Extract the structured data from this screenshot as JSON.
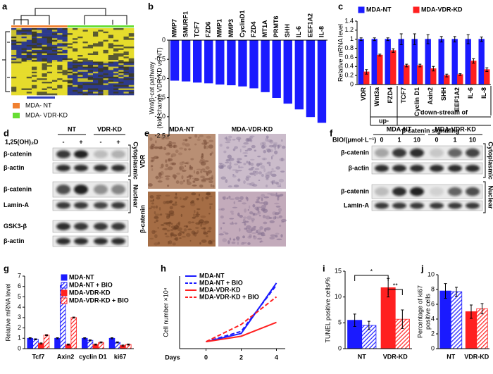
{
  "panel_labels": [
    "a",
    "b",
    "c",
    "d",
    "e",
    "f",
    "g",
    "h",
    "i",
    "j"
  ],
  "panel_a": {
    "legend": [
      {
        "name": "MDA- NT",
        "color": "#f08030"
      },
      {
        "name": "MDA- VDR-KD",
        "color": "#66dd33"
      }
    ]
  },
  "panel_d": {
    "groups": [
      "NT",
      "VDR-KD"
    ],
    "treatment": "1,25(OH)₂D",
    "doses": [
      "-",
      "+",
      "-",
      "+"
    ],
    "rows": [
      "β-catenin",
      "β-actin",
      "β-catenin",
      "Lamin-A",
      "GSK3-β",
      "β-actin"
    ],
    "fractions": [
      "Cytoplasmic",
      "Nuclear"
    ]
  },
  "panel_e": {
    "columns": [
      "MDA-NT",
      "MDA-VDR-KD"
    ],
    "rows": [
      "VDR",
      "β-catenin"
    ]
  },
  "panel_f": {
    "groups": [
      "MDA-NT",
      "MDA-VDR-KD"
    ],
    "treatment": "BIO/(μmol·L⁻¹)",
    "doses": [
      "0",
      "1",
      "10",
      "0",
      "1",
      "10"
    ],
    "rows": [
      "β-catenin",
      "β-actin",
      "β-catenin",
      "Lamin-A"
    ],
    "fractions": [
      "Cytoplasmic",
      "Nuclear"
    ]
  },
  "chart_data": [
    {
      "type": "bar",
      "y_label": [
        "Wnt/β-cat pathway",
        "(fold change VDR-KD vs NT)"
      ],
      "categories": [
        "MMP7",
        "SMURF1",
        "TCF7",
        "FZD6",
        "MMP1",
        "MMP3",
        "CyclinD1",
        "FZD4",
        "MT1A",
        "PRMT6",
        "SHH",
        "IL-6",
        "EEF1A2",
        "IL-8"
      ],
      "values": [
        -1.05,
        -1.07,
        -1.1,
        -1.12,
        -1.15,
        -1.17,
        -1.2,
        -1.25,
        -1.35,
        -1.5,
        -1.65,
        -1.8,
        -2.0,
        -2.15
      ],
      "color": "#1a1aff",
      "ylim": [
        -2.5,
        0
      ],
      "yticks": [
        -2.5,
        {
          "value": -2,
          "label": "-2.0"
        },
        -1.5,
        {
          "value": -1,
          "label": "-1.0"
        },
        -0.5,
        0
      ]
    },
    {
      "type": "bar",
      "y_label": "Relative mRNA level",
      "categories": [
        "VDR",
        "Wnt3a",
        "FZD4",
        "TCF7",
        "Cyclin D1",
        "Axin2",
        "SHH",
        "EEF1A2",
        "IL-6",
        "IL-8"
      ],
      "series": [
        {
          "name": "MDA-NT",
          "color": "#1a1aff",
          "values": [
            1.0,
            1.0,
            1.0,
            1.0,
            1.0,
            1.0,
            1.0,
            1.0,
            1.0,
            1.0
          ],
          "errors": [
            0.03,
            0.03,
            0.03,
            0.12,
            0.12,
            0.1,
            0.06,
            0.06,
            0.1,
            0.05
          ]
        },
        {
          "name": "MDA-VDR-KD",
          "color": "#ff2020",
          "values": [
            0.28,
            0.65,
            0.75,
            0.42,
            0.42,
            0.35,
            0.2,
            0.22,
            0.52,
            0.33
          ],
          "errors": [
            0.05,
            0.02,
            0.04,
            0.03,
            0.03,
            0.05,
            0.03,
            0.02,
            0.05,
            0.04
          ]
        }
      ],
      "ylim": [
        0,
        1.4
      ],
      "yticks": [
        0,
        0.2,
        0.4,
        0.6,
        0.8,
        1,
        1.2,
        1.4
      ],
      "legend": "top",
      "annotations": [
        "up-",
        "down-stream of",
        "β-catenin signaling"
      ]
    },
    {
      "type": "bar",
      "y_label": "Relative mRNA level",
      "categories": [
        "Tcf7",
        "Axin2",
        "cyclin D1",
        "ki67"
      ],
      "series": [
        {
          "name": "MDA-NT",
          "color": "#1a1aff",
          "values": [
            1.0,
            1.0,
            1.0,
            1.0
          ],
          "errors": [
            0.05,
            0.05,
            0.05,
            0.05
          ]
        },
        {
          "name": "MDA-NT + BIO",
          "color": "#1a1aff",
          "hatched": true,
          "values": [
            0.9,
            6.1,
            0.8,
            0.6
          ],
          "errors": [
            0.05,
            0.05,
            0.05,
            0.05
          ]
        },
        {
          "name": "MDA-VDR-KD",
          "color": "#ff2020",
          "values": [
            0.5,
            0.4,
            0.4,
            0.3
          ],
          "errors": [
            0.05,
            0.05,
            0.05,
            0.05
          ]
        },
        {
          "name": "MDA-VDR-KD + BIO",
          "color": "#ff2020",
          "hatched": true,
          "values": [
            1.3,
            3.0,
            0.6,
            0.4
          ],
          "errors": [
            0.05,
            0.05,
            0.05,
            0.05
          ]
        }
      ],
      "ylim": [
        0,
        7
      ],
      "yticks": [
        0,
        1,
        2,
        3,
        4,
        5,
        6,
        7
      ],
      "legend": "upper right"
    },
    {
      "type": "line",
      "y_label": "Cell number ×10⁴",
      "x_label": "Days",
      "x": [
        0,
        2,
        4
      ],
      "xlim": [
        -1.5,
        4.5
      ],
      "xticks": [
        0,
        2,
        4
      ],
      "ylim": [
        0,
        105
      ],
      "series": [
        {
          "name": "MDA-NT",
          "color": "#1a1aff",
          "values": [
            10,
            22,
            95
          ]
        },
        {
          "name": "MDA-NT + BIO",
          "color": "#1a1aff",
          "dashed": true,
          "values": [
            10,
            25,
            92
          ]
        },
        {
          "name": "MDA-VDR-KD",
          "color": "#ff2020",
          "values": [
            10,
            18,
            38
          ]
        },
        {
          "name": "MDA-VDR-KD + BIO",
          "color": "#ff2020",
          "dashed": true,
          "values": [
            10,
            35,
            75
          ]
        }
      ],
      "legend": "upper left"
    },
    {
      "type": "bar",
      "y_label": "TUNEL positive cells/%",
      "categories": [
        "NT",
        "VDR-KD"
      ],
      "series": [
        {
          "colors": [
            "#1a1aff",
            "#ff2020"
          ],
          "values": [
            5.5,
            11.8
          ],
          "errors": [
            1.2,
            1.8
          ]
        },
        {
          "colors": [
            "#1a1aff",
            "#ff2020"
          ],
          "hatched": true,
          "values": [
            4.5,
            5.7
          ],
          "errors": [
            0.8,
            1.8
          ]
        }
      ],
      "ylim": [
        0,
        15
      ],
      "yticks": [
        0,
        5,
        10,
        15
      ],
      "annotations": [
        "*",
        "**"
      ]
    },
    {
      "type": "bar",
      "y_label": [
        "Percentage of ki67",
        "positive cells"
      ],
      "categories": [
        "NT",
        "VDR-KD"
      ],
      "series": [
        {
          "colors": [
            "#1a1aff",
            "#ff2020"
          ],
          "values": [
            7.8,
            5.0
          ],
          "errors": [
            1.0,
            0.9
          ]
        },
        {
          "colors": [
            "#1a1aff",
            "#ff2020"
          ],
          "hatched": true,
          "values": [
            7.7,
            5.4
          ],
          "errors": [
            0.6,
            0.7
          ]
        }
      ],
      "ylim": [
        0,
        10
      ],
      "yticks": [
        0,
        2,
        4,
        6,
        8,
        10
      ]
    }
  ]
}
